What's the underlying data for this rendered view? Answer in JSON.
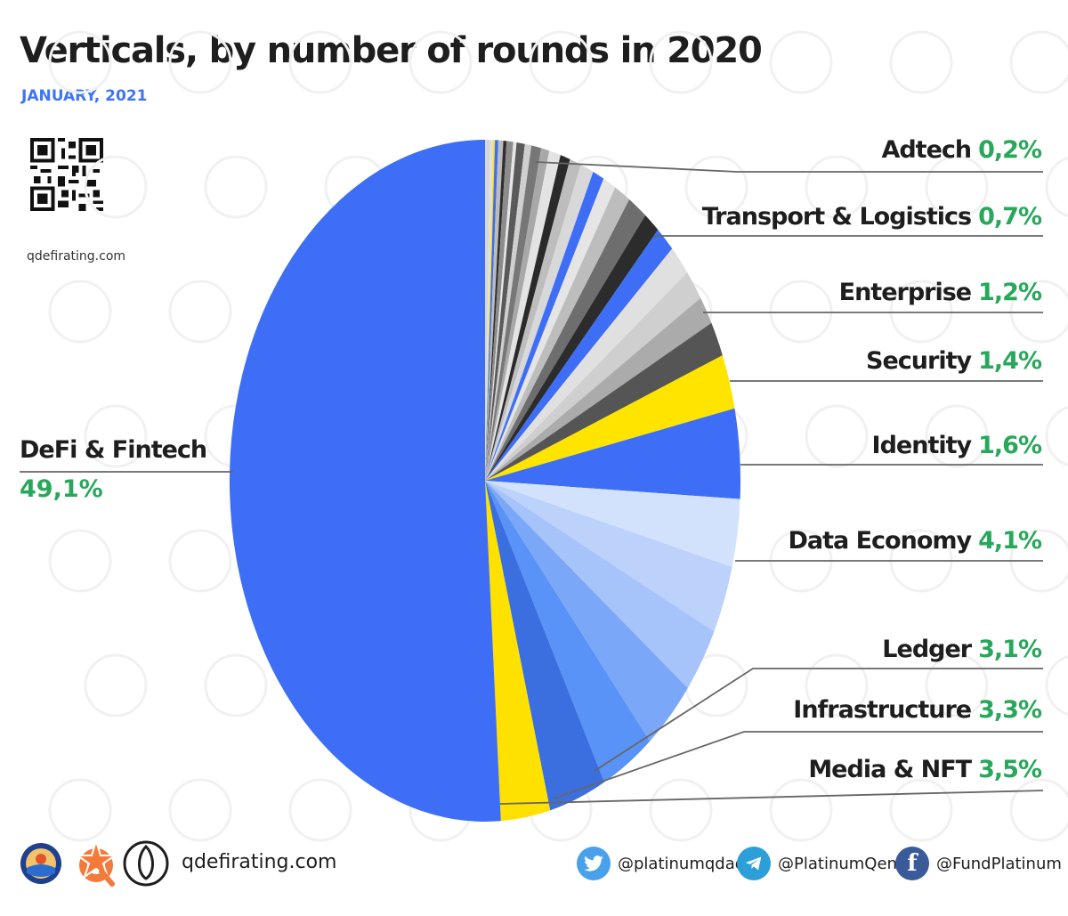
{
  "header": {
    "title": "Verticals, by number of rounds in 2020",
    "subtitle": "JANUARY, 2021"
  },
  "qr": {
    "label": "qdefirating.com"
  },
  "footer": {
    "url": "qdefirating.com",
    "twitter": "@platinumqdao",
    "telegram": "@PlatinumQeng",
    "facebook": "@FundPlatinum"
  },
  "chart_data": {
    "type": "pie",
    "title": "Verticals, by number of rounds in 2020",
    "subtitle": "JANUARY, 2021",
    "labeled_slices": [
      {
        "name": "DeFi & Fintech",
        "value_label": "49,1%",
        "value": 49.1,
        "color": "#3e6ef5"
      },
      {
        "name": "Media & NFT",
        "value_label": "3,5%",
        "value": 3.5,
        "color": "#3b6fe0"
      },
      {
        "name": "Infrastructure",
        "value_label": "3,3%",
        "value": 3.3,
        "color": "#5a93f7"
      },
      {
        "name": "Ledger",
        "value_label": "3,1%",
        "value": 3.1,
        "color": "#9cbcf9"
      },
      {
        "name": "Data Economy",
        "value_label": "4,1%",
        "value": 4.1,
        "color": "#3e6ef5"
      },
      {
        "name": "Identity",
        "value_label": "1,6%",
        "value": 1.6,
        "color": "#555555"
      },
      {
        "name": "Security",
        "value_label": "1,4%",
        "value": 1.4,
        "color": "#cfcfcf"
      },
      {
        "name": "Enterprise",
        "value_label": "1,2%",
        "value": 1.2,
        "color": "#444444"
      },
      {
        "name": "Transport & Logistics",
        "value_label": "0,7%",
        "value": 0.7,
        "color": "#bdbdbd"
      },
      {
        "name": "Adtech",
        "value_label": "0,2%",
        "value": 0.2,
        "color": "#d6d6d6"
      }
    ],
    "slices_clockwise_from_top": [
      {
        "value": 0.3,
        "color": "#d6d6d6"
      },
      {
        "value": 0.2,
        "color": "#e0e0e0"
      },
      {
        "value": 0.1,
        "color": "#ffe100"
      },
      {
        "value": 0.2,
        "color": "#3e6ef5"
      },
      {
        "value": 0.3,
        "color": "#bcbcbc"
      },
      {
        "value": 0.2,
        "color": "#2e2e2e"
      },
      {
        "value": 0.4,
        "color": "#8c8c8c"
      },
      {
        "value": 0.2,
        "color": "#e6e6e6"
      },
      {
        "value": 0.5,
        "color": "#5a5a5a"
      },
      {
        "value": 0.4,
        "color": "#cfcfcf"
      },
      {
        "value": 0.6,
        "color": "#777777"
      },
      {
        "value": 0.5,
        "color": "#a8a8a8"
      },
      {
        "value": 0.7,
        "color": "#e3e3e3"
      },
      {
        "value": 0.6,
        "color": "#2a2a2a"
      },
      {
        "value": 0.7,
        "color": "#bdbdbd"
      },
      {
        "value": 0.8,
        "color": "#d8d8d8"
      },
      {
        "value": 0.7,
        "color": "#3e6ef5"
      },
      {
        "value": 0.8,
        "color": "#e5e5e5"
      },
      {
        "value": 1.0,
        "color": "#bdbdbd"
      },
      {
        "value": 1.2,
        "color": "#6e6e6e"
      },
      {
        "value": 1.0,
        "color": "#2c2c2c"
      },
      {
        "value": 1.2,
        "color": "#3e6ef5"
      },
      {
        "value": 1.4,
        "color": "#e0e0e0"
      },
      {
        "value": 1.4,
        "color": "#cfcfcf"
      },
      {
        "value": 1.3,
        "color": "#ababab"
      },
      {
        "value": 1.6,
        "color": "#555555"
      },
      {
        "value": 2.5,
        "color": "#ffe400"
      },
      {
        "value": 4.1,
        "color": "#3e6ef5"
      },
      {
        "value": 3.1,
        "color": "#d3e2fc"
      },
      {
        "value": 3.1,
        "color": "#bcd2fb"
      },
      {
        "value": 3.0,
        "color": "#a6c3fa"
      },
      {
        "value": 3.3,
        "color": "#7ba7f8"
      },
      {
        "value": 3.3,
        "color": "#5a93f7"
      },
      {
        "value": 3.5,
        "color": "#3b6fe0"
      },
      {
        "value": 3.0,
        "color": "#ffe100"
      },
      {
        "value": 49.1,
        "color": "#3e6ef5"
      }
    ]
  }
}
